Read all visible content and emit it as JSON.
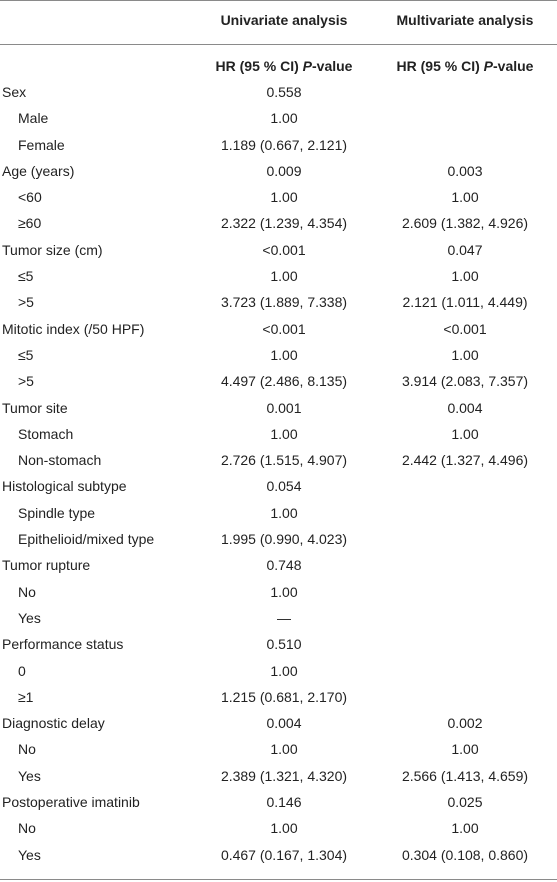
{
  "header": {
    "univariate_title": "Univariate analysis",
    "multivariate_title": "Multivariate analysis",
    "sub_hr": "HR (95 % CI)",
    "sub_p": "P",
    "sub_value": "-value"
  },
  "rows": [
    {
      "label": "Sex",
      "level": 0,
      "uni": "0.558",
      "multi": ""
    },
    {
      "label": "Male",
      "level": 1,
      "uni": "1.00",
      "multi": ""
    },
    {
      "label": "Female",
      "level": 1,
      "uni": "1.189 (0.667, 2.121)",
      "multi": ""
    },
    {
      "label": "Age (years)",
      "level": 0,
      "uni": "0.009",
      "multi": "0.003"
    },
    {
      "label": "<60",
      "level": 1,
      "uni": "1.00",
      "multi": "1.00"
    },
    {
      "label": "≥60",
      "level": 1,
      "uni": "2.322 (1.239, 4.354)",
      "multi": "2.609 (1.382, 4.926)"
    },
    {
      "label": "Tumor size (cm)",
      "level": 0,
      "uni": "<0.001",
      "multi": "0.047"
    },
    {
      "label": "≤5",
      "level": 1,
      "uni": "1.00",
      "multi": "1.00"
    },
    {
      "label": ">5",
      "level": 1,
      "uni": "3.723 (1.889, 7.338)",
      "multi": "2.121 (1.011, 4.449)"
    },
    {
      "label": "Mitotic index (/50 HPF)",
      "level": 0,
      "uni": "<0.001",
      "multi": "<0.001"
    },
    {
      "label": "≤5",
      "level": 1,
      "uni": "1.00",
      "multi": "1.00"
    },
    {
      "label": ">5",
      "level": 1,
      "uni": "4.497 (2.486, 8.135)",
      "multi": "3.914 (2.083, 7.357)"
    },
    {
      "label": "Tumor site",
      "level": 0,
      "uni": "0.001",
      "multi": "0.004"
    },
    {
      "label": "Stomach",
      "level": 1,
      "uni": "1.00",
      "multi": "1.00"
    },
    {
      "label": "Non-stomach",
      "level": 1,
      "uni": "2.726 (1.515, 4.907)",
      "multi": "2.442 (1.327, 4.496)"
    },
    {
      "label": "Histological subtype",
      "level": 0,
      "uni": "0.054",
      "multi": ""
    },
    {
      "label": "Spindle type",
      "level": 1,
      "uni": "1.00",
      "multi": ""
    },
    {
      "label": "Epithelioid/mixed type",
      "level": 1,
      "uni": "1.995 (0.990, 4.023)",
      "multi": ""
    },
    {
      "label": "Tumor rupture",
      "level": 0,
      "uni": "0.748",
      "multi": ""
    },
    {
      "label": "No",
      "level": 1,
      "uni": "1.00",
      "multi": ""
    },
    {
      "label": "Yes",
      "level": 1,
      "uni": "—",
      "multi": ""
    },
    {
      "label": "Performance status",
      "level": 0,
      "uni": "0.510",
      "multi": ""
    },
    {
      "label": "0",
      "level": 1,
      "uni": "1.00",
      "multi": ""
    },
    {
      "label": "≥1",
      "level": 1,
      "uni": "1.215 (0.681, 2.170)",
      "multi": ""
    },
    {
      "label": "Diagnostic delay",
      "level": 0,
      "uni": "0.004",
      "multi": "0.002"
    },
    {
      "label": "No",
      "level": 1,
      "uni": "1.00",
      "multi": "1.00"
    },
    {
      "label": "Yes",
      "level": 1,
      "uni": "2.389 (1.321, 4.320)",
      "multi": "2.566 (1.413, 4.659)"
    },
    {
      "label": "Postoperative imatinib",
      "level": 0,
      "uni": "0.146",
      "multi": "0.025"
    },
    {
      "label": "No",
      "level": 1,
      "uni": "1.00",
      "multi": "1.00"
    },
    {
      "label": "Yes",
      "level": 1,
      "uni": "0.467 (0.167, 1.304)",
      "multi": "0.304 (0.108, 0.860)"
    }
  ]
}
